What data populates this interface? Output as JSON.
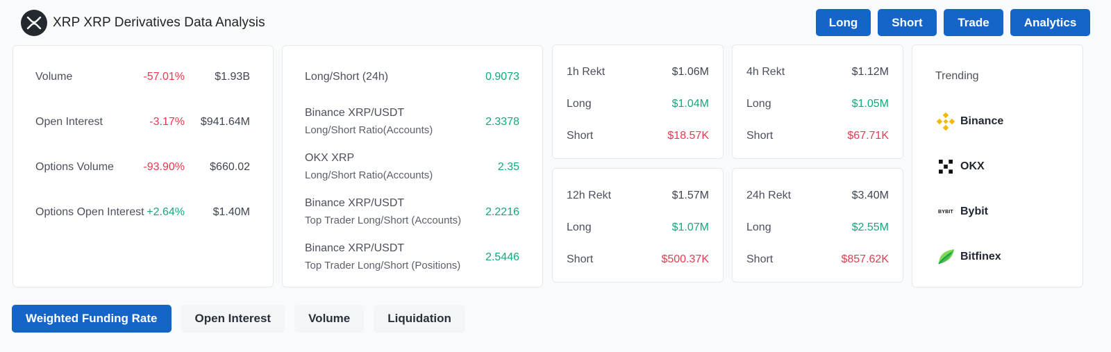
{
  "header": {
    "title": "XRP XRP Derivatives Data Analysis",
    "buttons": [
      "Long",
      "Short",
      "Trade",
      "Analytics"
    ]
  },
  "overview": [
    {
      "label": "Volume",
      "change": "-57.01%",
      "value": "$1.93B",
      "dir": "neg"
    },
    {
      "label": "Open Interest",
      "change": "-3.17%",
      "value": "$941.64M",
      "dir": "neg"
    },
    {
      "label": "Options Volume",
      "change": "-93.90%",
      "value": "$660.02",
      "dir": "neg"
    },
    {
      "label": "Options Open Interest",
      "change": "+2.64%",
      "value": "$1.40M",
      "dir": "pos"
    }
  ],
  "ratios": [
    {
      "label": "Long/Short (24h)",
      "sub": "",
      "value": "0.9073"
    },
    {
      "label": "Binance XRP/USDT",
      "sub": "Long/Short Ratio(Accounts)",
      "value": "2.3378"
    },
    {
      "label": "OKX XRP",
      "sub": "Long/Short Ratio(Accounts)",
      "value": "2.35"
    },
    {
      "label": "Binance XRP/USDT",
      "sub": "Top Trader Long/Short (Accounts)",
      "value": "2.2216"
    },
    {
      "label": "Binance XRP/USDT",
      "sub": "Top Trader Long/Short (Positions)",
      "value": "2.5446"
    }
  ],
  "rekt": [
    {
      "title": "1h Rekt",
      "total": "$1.06M",
      "long_label": "Long",
      "long": "$1.04M",
      "short_label": "Short",
      "short": "$18.57K"
    },
    {
      "title": "4h Rekt",
      "total": "$1.12M",
      "long_label": "Long",
      "long": "$1.05M",
      "short_label": "Short",
      "short": "$67.71K"
    },
    {
      "title": "12h Rekt",
      "total": "$1.57M",
      "long_label": "Long",
      "long": "$1.07M",
      "short_label": "Short",
      "short": "$500.37K"
    },
    {
      "title": "24h Rekt",
      "total": "$3.40M",
      "long_label": "Long",
      "long": "$2.55M",
      "short_label": "Short",
      "short": "$857.62K"
    }
  ],
  "trending": {
    "title": "Trending",
    "exchanges": [
      {
        "name": "Binance",
        "icon": "binance-icon"
      },
      {
        "name": "OKX",
        "icon": "okx-icon"
      },
      {
        "name": "Bybit",
        "icon": "bybit-icon",
        "icon_text": "BYBIT"
      },
      {
        "name": "Bitfinex",
        "icon": "bitfinex-icon"
      }
    ]
  },
  "tabs": [
    "Weighted Funding Rate",
    "Open Interest",
    "Volume",
    "Liquidation"
  ],
  "colors": {
    "accent": "#1565c8",
    "negative": "#e8394f",
    "positive": "#12a87e"
  }
}
